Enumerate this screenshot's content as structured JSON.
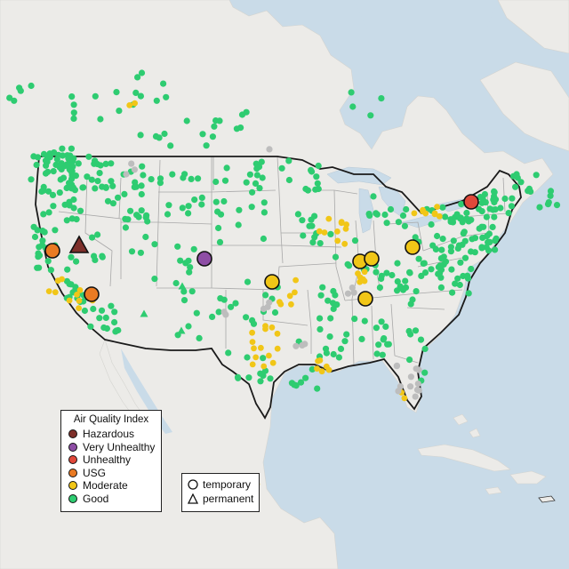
{
  "legend": {
    "title": "Air Quality Index",
    "items": [
      {
        "label": "Hazardous",
        "color": "#7e2f2a"
      },
      {
        "label": "Very Unhealthy",
        "color": "#8e4ea5"
      },
      {
        "label": "Unhealthy",
        "color": "#e0483a"
      },
      {
        "label": "USG",
        "color": "#ea7b24"
      },
      {
        "label": "Moderate",
        "color": "#f1c617"
      },
      {
        "label": "Good",
        "color": "#2ecc71"
      }
    ]
  },
  "shape_legend": {
    "temporary": "temporary",
    "permanent": "permanent"
  },
  "colors": {
    "water": "#c9dbe8",
    "land": "#ecebe8",
    "state_lines": "#a8a8a8",
    "border": "#1a1a1a",
    "no_data": "#bdbdbd"
  },
  "highlighted_sites": [
    {
      "category": "Hazardous",
      "shape": "triangle"
    },
    {
      "category": "Very Unhealthy",
      "shape": "circle"
    },
    {
      "category": "Unhealthy",
      "shape": "circle"
    },
    {
      "category": "USG",
      "shape": "circle"
    },
    {
      "category": "USG",
      "shape": "circle"
    },
    {
      "category": "Moderate",
      "shape": "circle"
    },
    {
      "category": "Moderate",
      "shape": "circle"
    },
    {
      "category": "Moderate",
      "shape": "circle"
    },
    {
      "category": "Moderate",
      "shape": "circle"
    },
    {
      "category": "Moderate",
      "shape": "circle"
    }
  ]
}
